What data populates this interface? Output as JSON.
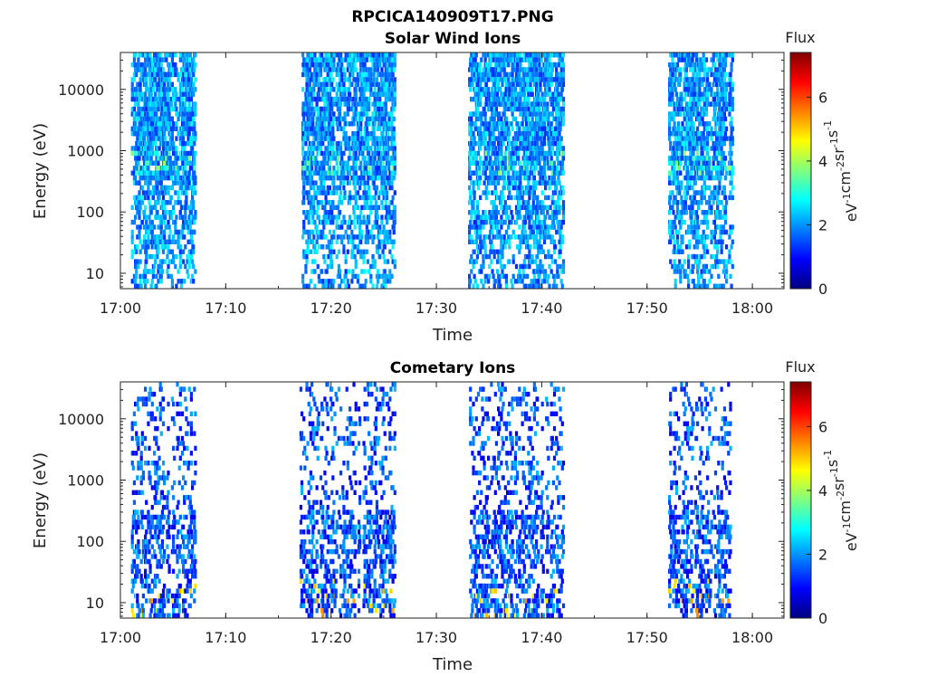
{
  "figure": {
    "title": "RPCICA140909T17.PNG"
  },
  "colorbar": {
    "title": "Flux",
    "label_parts": [
      "eV",
      "-1",
      "cm",
      "-2",
      "sr",
      "-1",
      "s",
      "-1"
    ],
    "range": [
      0,
      7.4
    ],
    "ticks": [
      0,
      2,
      4,
      6
    ],
    "colormap": "jet"
  },
  "chart_data": [
    {
      "type": "heatmap",
      "title": "Solar Wind Ions",
      "xlabel": "Time",
      "ylabel": "Energy (eV)",
      "y_scale": "log",
      "xlim": [
        "17:00",
        "18:03"
      ],
      "ylim": [
        5.6,
        40000
      ],
      "x_ticks": [
        "17:00",
        "17:10",
        "17:20",
        "17:30",
        "17:40",
        "17:50",
        "18:00"
      ],
      "y_ticks": [
        10,
        100,
        1000,
        10000
      ],
      "y_tick_labels": [
        "10",
        "100",
        "1000",
        "10000"
      ],
      "grid": false,
      "active_intervals": [
        [
          "17:01",
          "17:07"
        ],
        [
          "17:17",
          "17:26"
        ],
        [
          "17:33",
          "17:42"
        ],
        [
          "17:52",
          "17:58"
        ]
      ],
      "energy_range_of_counts": [
        5.6,
        40000
      ],
      "typical_flux": 2,
      "peak_flux": 4,
      "peak_energy_band": [
        400,
        1000
      ]
    },
    {
      "type": "heatmap",
      "title": "Cometary Ions",
      "xlabel": "Time",
      "ylabel": "Energy (eV)",
      "y_scale": "log",
      "xlim": [
        "17:00",
        "18:03"
      ],
      "ylim": [
        5.6,
        40000
      ],
      "x_ticks": [
        "17:00",
        "17:10",
        "17:20",
        "17:30",
        "17:40",
        "17:50",
        "18:00"
      ],
      "y_ticks": [
        10,
        100,
        1000,
        10000
      ],
      "y_tick_labels": [
        "10",
        "100",
        "1000",
        "10000"
      ],
      "grid": false,
      "active_intervals": [
        [
          "17:01",
          "17:07"
        ],
        [
          "17:17",
          "17:26"
        ],
        [
          "17:33",
          "17:42"
        ],
        [
          "17:52",
          "17:58"
        ]
      ],
      "energy_range_of_counts": [
        5.6,
        40000
      ],
      "typical_flux": 1.5,
      "peak_flux": 5.5,
      "peak_energy_band": [
        6,
        25
      ]
    }
  ]
}
